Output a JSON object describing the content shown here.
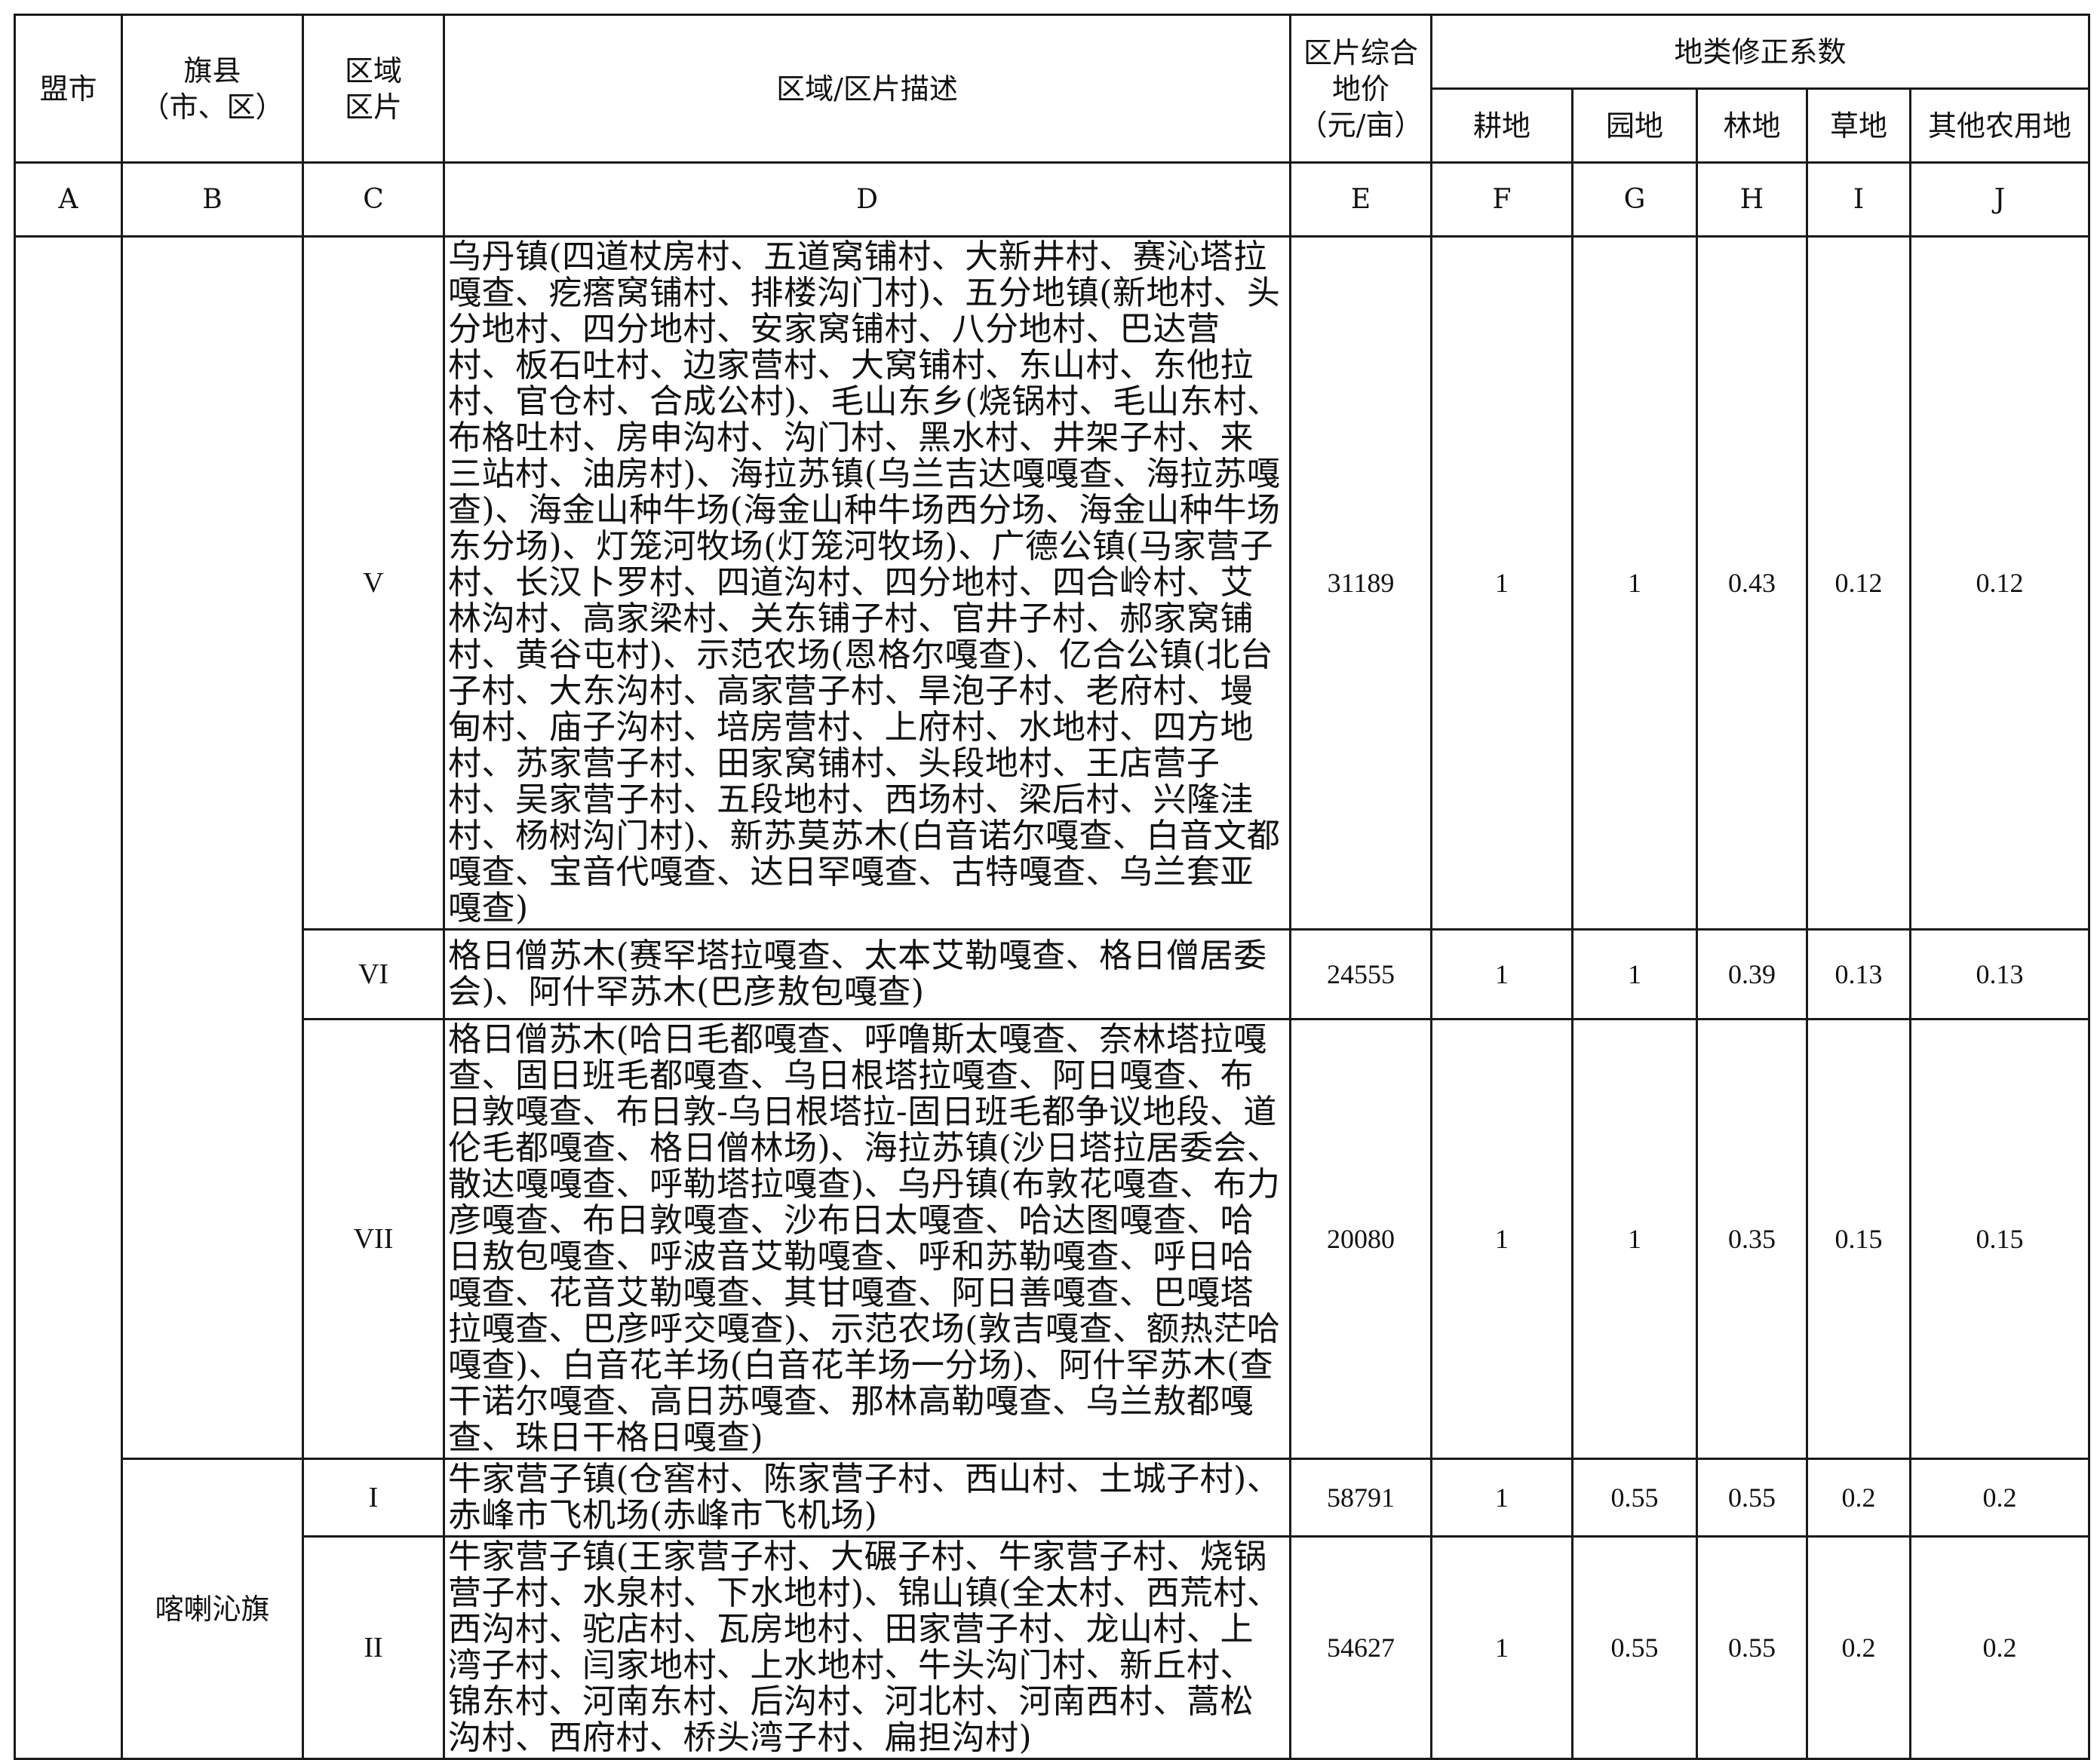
{
  "header": {
    "col_a": "盟市",
    "col_b": "旗县\n（市、区）",
    "col_c": "区域\n区片",
    "col_d": "区域/区片描述",
    "col_e": "区片综合\n地价\n（元/亩）",
    "coef_group": "地类修正系数",
    "col_f": "耕地",
    "col_g": "园地",
    "col_h": "林地",
    "col_i": "草地",
    "col_j": "其他农用地"
  },
  "letters": [
    "A",
    "B",
    "C",
    "D",
    "E",
    "F",
    "G",
    "H",
    "I",
    "J"
  ],
  "rows": [
    {
      "league": "",
      "county": "",
      "zone": "V",
      "description": "乌丹镇(四道杖房村、五道窝铺村、大新井村、赛沁塔拉嘎查、疙瘩窝铺村、排楼沟门村)、五分地镇(新地村、头分地村、四分地村、安家窝铺村、八分地村、巴达营村、板石吐村、边家营村、大窝铺村、东山村、东他拉村、官仓村、合成公村)、毛山东乡(烧锅村、毛山东村、布格吐村、房申沟村、沟门村、黑水村、井架子村、来三站村、油房村)、海拉苏镇(乌兰吉达嘎嘎查、海拉苏嘎查)、海金山种牛场(海金山种牛场西分场、海金山种牛场东分场)、灯笼河牧场(灯笼河牧场)、广德公镇(马家营子村、长汉卜罗村、四道沟村、四分地村、四合岭村、艾林沟村、高家梁村、关东铺子村、官井子村、郝家窝铺村、黄谷屯村)、示范农场(恩格尔嘎查)、亿合公镇(北台子村、大东沟村、高家营子村、旱泡子村、老府村、墁甸村、庙子沟村、培房营村、上府村、水地村、四方地村、苏家营子村、田家窝铺村、头段地村、王店营子村、吴家营子村、五段地村、西场村、梁后村、兴隆洼村、杨树沟门村)、新苏莫苏木(白音诺尔嘎查、白音文都嘎查、宝音代嘎查、达日罕嘎查、古特嘎查、乌兰套亚嘎查)",
      "price": "31189",
      "farmland": "1",
      "garden": "1",
      "forest": "0.43",
      "grassland": "0.12",
      "other": "0.12"
    },
    {
      "zone": "VI",
      "description": "格日僧苏木(赛罕塔拉嘎查、太本艾勒嘎查、格日僧居委会)、阿什罕苏木(巴彦敖包嘎查)",
      "price": "24555",
      "farmland": "1",
      "garden": "1",
      "forest": "0.39",
      "grassland": "0.13",
      "other": "0.13"
    },
    {
      "zone": "VII",
      "description": "格日僧苏木(哈日毛都嘎查、呼噜斯太嘎查、奈林塔拉嘎查、固日班毛都嘎查、乌日根塔拉嘎查、阿日嘎查、布日敦嘎查、布日敦-乌日根塔拉-固日班毛都争议地段、道伦毛都嘎查、格日僧林场)、海拉苏镇(沙日塔拉居委会、散达嘎嘎查、呼勒塔拉嘎查)、乌丹镇(布敦花嘎查、布力彦嘎查、布日敦嘎查、沙布日太嘎查、哈达图嘎查、哈日敖包嘎查、呼波音艾勒嘎查、呼和苏勒嘎查、呼日哈嘎查、花音艾勒嘎查、其甘嘎查、阿日善嘎查、巴嘎塔拉嘎查、巴彦呼交嘎查)、示范农场(敦吉嘎查、额热茫哈嘎查)、白音花羊场(白音花羊场一分场)、阿什罕苏木(查干诺尔嘎查、高日苏嘎查、那林高勒嘎查、乌兰敖都嘎查、珠日干格日嘎查)",
      "price": "20080",
      "farmland": "1",
      "garden": "1",
      "forest": "0.35",
      "grassland": "0.15",
      "other": "0.15"
    },
    {
      "county": "喀喇沁旗",
      "zone": "I",
      "description": "牛家营子镇(仓窖村、陈家营子村、西山村、土城子村)、赤峰市飞机场(赤峰市飞机场)",
      "price": "58791",
      "farmland": "1",
      "garden": "0.55",
      "forest": "0.55",
      "grassland": "0.2",
      "other": "0.2"
    },
    {
      "zone": "II",
      "description": "牛家营子镇(王家营子村、大碾子村、牛家营子村、烧锅营子村、水泉村、下水地村)、锦山镇(全太村、西荒村、西沟村、驼店村、瓦房地村、田家营子村、龙山村、上湾子村、闫家地村、上水地村、牛头沟门村、新丘村、锦东村、河南东村、后沟村、河北村、河南西村、蒿松沟村、西府村、桥头湾子村、扁担沟村)",
      "price": "54627",
      "farmland": "1",
      "garden": "0.55",
      "forest": "0.55",
      "grassland": "0.2",
      "other": "0.2"
    }
  ]
}
